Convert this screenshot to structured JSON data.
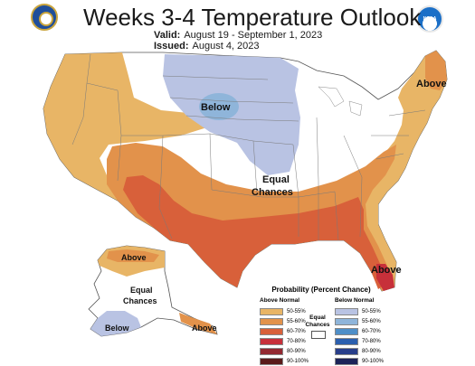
{
  "header": {
    "title": "Weeks 3-4 Temperature Outlook",
    "valid_label": "Valid:",
    "valid_value": "August 19 - September 1, 2023",
    "issued_label": "Issued:",
    "issued_value": "August 4, 2023",
    "agency_logo_right_text": "NOAA"
  },
  "map_labels": {
    "above_northeast": "Above",
    "below_plains": "Below",
    "equal_chances_line1": "Equal",
    "equal_chances_line2": "Chances",
    "above_florida": "Above",
    "alaska_above_north": "Above",
    "alaska_equal_line1": "Equal",
    "alaska_equal_line2": "Chances",
    "alaska_below": "Below",
    "alaska_above_south": "Above"
  },
  "legend": {
    "title": "Probability (Percent Chance)",
    "above_header": "Above Normal",
    "below_header": "Below Normal",
    "equal_chances_line1": "Equal",
    "equal_chances_line2": "Chances",
    "above_rows": [
      {
        "label": "50-55%",
        "color": "#e8b566"
      },
      {
        "label": "55-60%",
        "color": "#e2924b"
      },
      {
        "label": "60-70%",
        "color": "#d8603a"
      },
      {
        "label": "70-80%",
        "color": "#c7303a"
      },
      {
        "label": "80-90%",
        "color": "#922830"
      },
      {
        "label": "90-100%",
        "color": "#5a1a1a"
      }
    ],
    "below_rows": [
      {
        "label": "50-55%",
        "color": "#b9c3e3"
      },
      {
        "label": "55-60%",
        "color": "#8fb5da"
      },
      {
        "label": "60-70%",
        "color": "#4f8fc8"
      },
      {
        "label": "70-80%",
        "color": "#2b5fae"
      },
      {
        "label": "80-90%",
        "color": "#283e8a"
      },
      {
        "label": "90-100%",
        "color": "#1c2358"
      }
    ]
  },
  "colors": {
    "above_50_55": "#e8b566",
    "above_55_60": "#e2924b",
    "above_60_70": "#d8603a",
    "above_70_80": "#c7303a",
    "below_50_55": "#b9c3e3",
    "below_55_60": "#8fb5da",
    "state_lines": "#7a7a7a"
  }
}
